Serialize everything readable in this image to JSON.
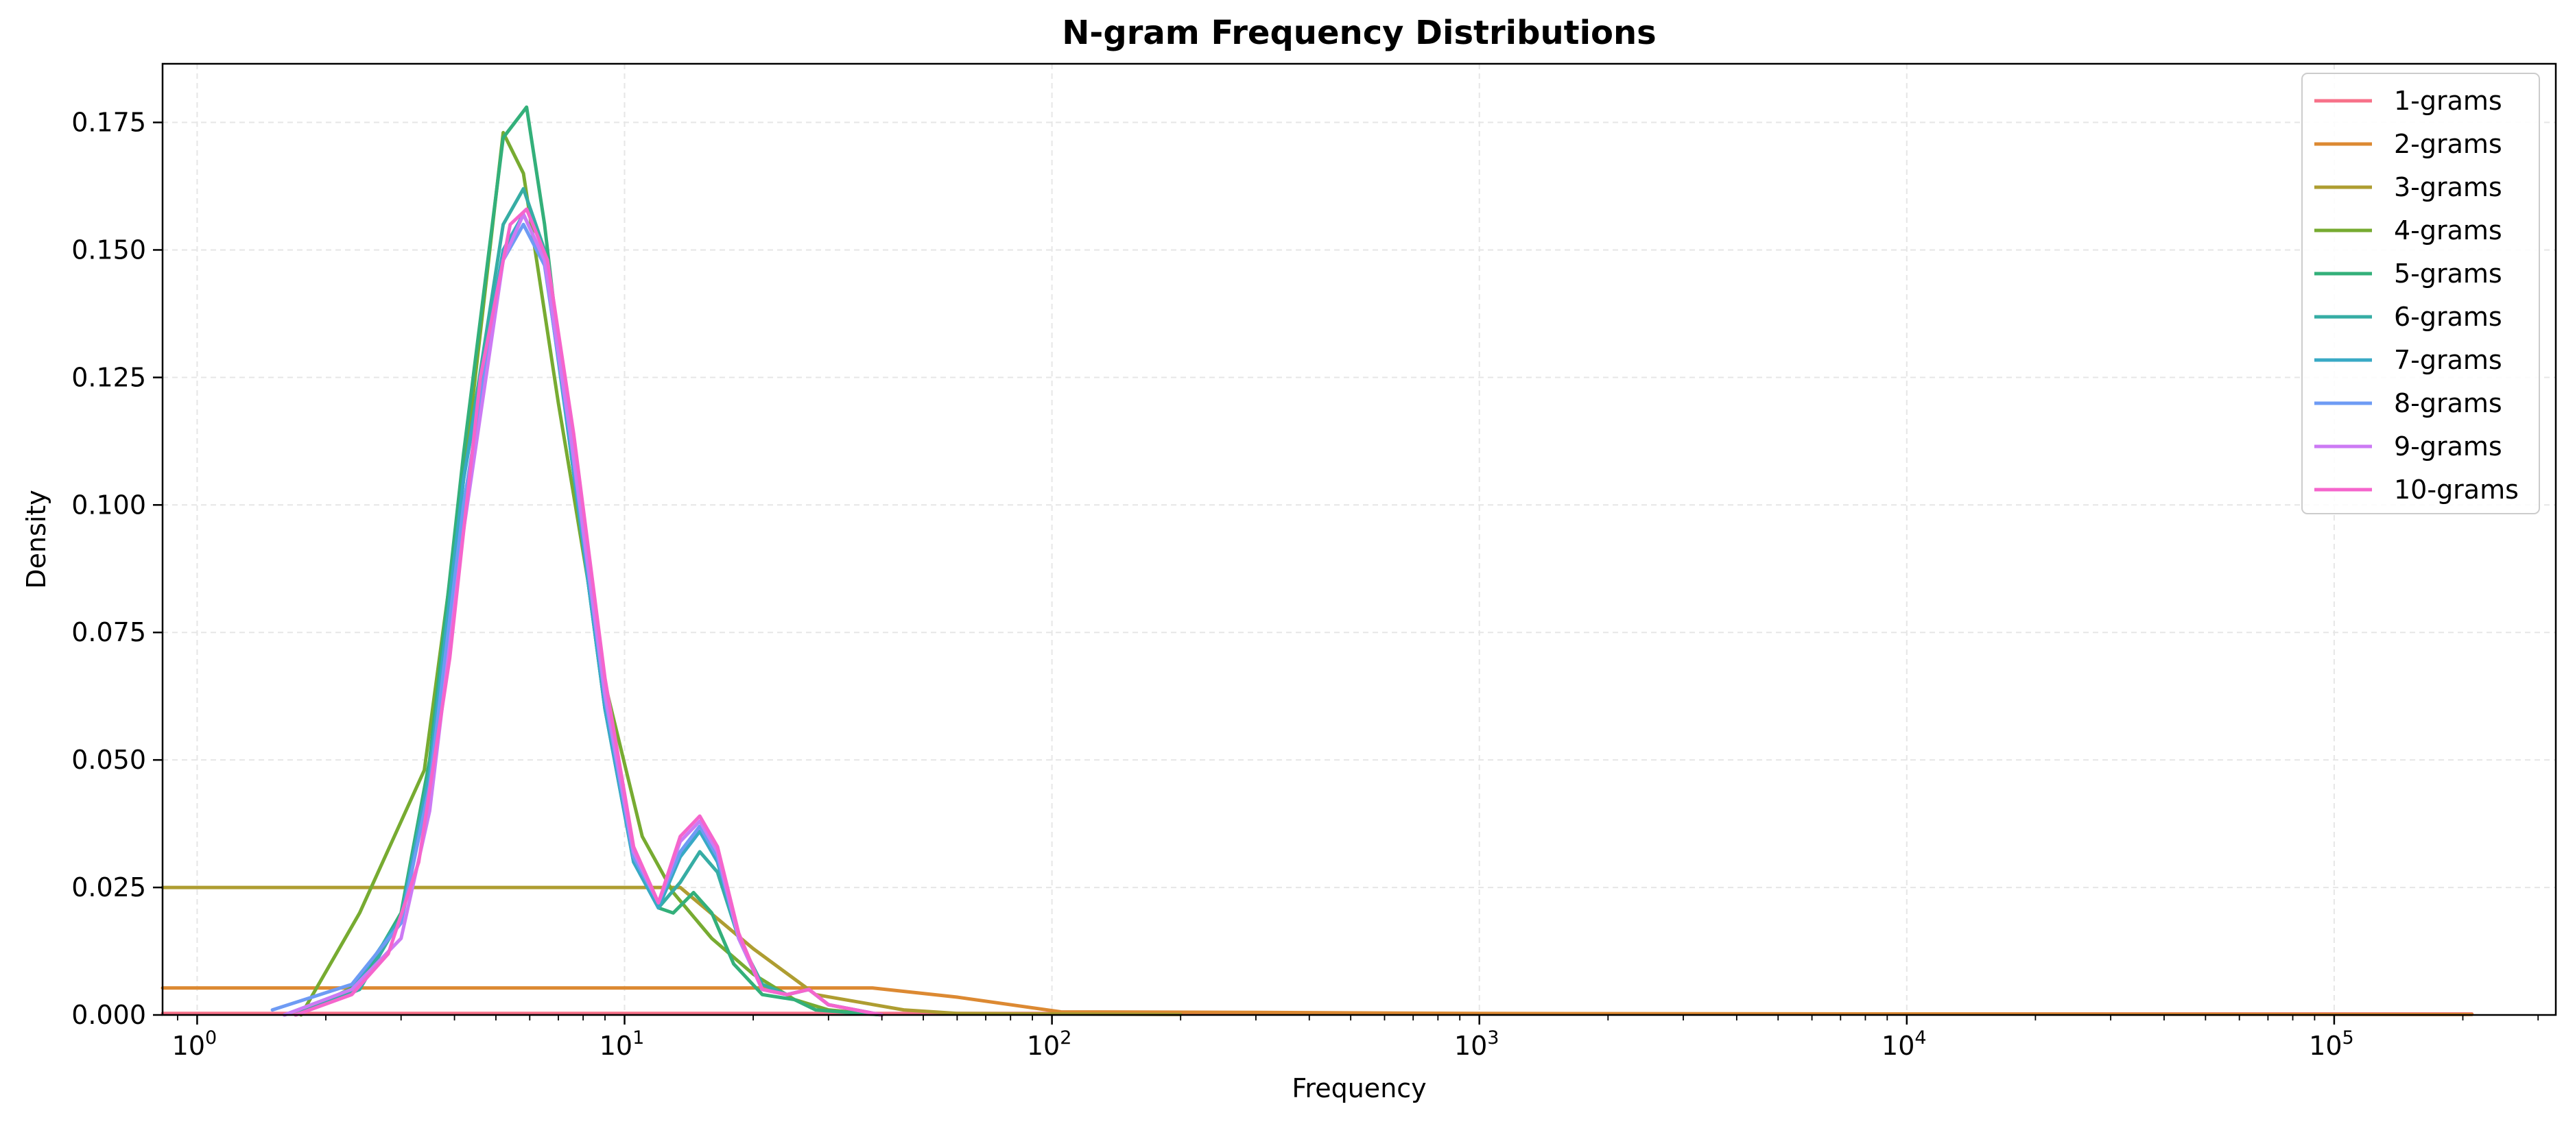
{
  "chart_data": {
    "type": "line",
    "title": "N-gram Frequency Distributions",
    "xlabel": "Frequency",
    "ylabel": "Density",
    "x_scale": "log",
    "xlim": [
      0.83,
      330000
    ],
    "ylim": [
      0,
      0.1865
    ],
    "x_ticks": [
      {
        "value": 1,
        "label_base": "10",
        "label_exp": "0"
      },
      {
        "value": 10,
        "label_base": "10",
        "label_exp": "1"
      },
      {
        "value": 100,
        "label_base": "10",
        "label_exp": "2"
      },
      {
        "value": 1000,
        "label_base": "10",
        "label_exp": "3"
      },
      {
        "value": 10000,
        "label_base": "10",
        "label_exp": "4"
      },
      {
        "value": 100000,
        "label_base": "10",
        "label_exp": "5"
      }
    ],
    "y_ticks": [
      {
        "value": 0.0,
        "label": "0.000"
      },
      {
        "value": 0.025,
        "label": "0.025"
      },
      {
        "value": 0.05,
        "label": "0.050"
      },
      {
        "value": 0.075,
        "label": "0.075"
      },
      {
        "value": 0.1,
        "label": "0.100"
      },
      {
        "value": 0.125,
        "label": "0.125"
      },
      {
        "value": 0.15,
        "label": "0.150"
      },
      {
        "value": 0.175,
        "label": "0.175"
      }
    ],
    "grid": true,
    "legend_position": "top-right",
    "series": [
      {
        "name": "1-grams",
        "color": "#f77189",
        "points": [
          [
            0.83,
            0.0003
          ],
          [
            10,
            0.0003
          ],
          [
            100,
            0.0003
          ],
          [
            1000,
            0.0002
          ],
          [
            10000,
            0.0002
          ],
          [
            100000,
            0.0002
          ],
          [
            210000,
            0.0002
          ]
        ]
      },
      {
        "name": "2-grams",
        "color": "#dc8932",
        "points": [
          [
            0.83,
            0.0053
          ],
          [
            10,
            0.0053
          ],
          [
            38,
            0.0053
          ],
          [
            60,
            0.0035
          ],
          [
            105,
            0.0006
          ],
          [
            300,
            0.0005
          ],
          [
            1000,
            0.0003
          ],
          [
            10000,
            0.0002
          ],
          [
            210000,
            0.0001
          ]
        ]
      },
      {
        "name": "3-grams",
        "color": "#ae9d31",
        "points": [
          [
            0.83,
            0.025
          ],
          [
            13.5,
            0.025
          ],
          [
            20,
            0.013
          ],
          [
            28,
            0.004
          ],
          [
            45,
            0.001
          ],
          [
            60,
            0.0003
          ],
          [
            200,
            0.0001
          ]
        ]
      },
      {
        "name": "4-grams",
        "color": "#77ab31",
        "points": [
          [
            1.75,
            0.0
          ],
          [
            2.4,
            0.02
          ],
          [
            3.4,
            0.048
          ],
          [
            4.2,
            0.105
          ],
          [
            5.2,
            0.173
          ],
          [
            5.8,
            0.165
          ],
          [
            7,
            0.12
          ],
          [
            9,
            0.065
          ],
          [
            11,
            0.035
          ],
          [
            13,
            0.024
          ],
          [
            16,
            0.015
          ],
          [
            20,
            0.008
          ],
          [
            25,
            0.003
          ],
          [
            30,
            0.001
          ],
          [
            40,
            0.0
          ]
        ]
      },
      {
        "name": "5-grams",
        "color": "#33b07a",
        "points": [
          [
            1.7,
            0.0
          ],
          [
            2.4,
            0.006
          ],
          [
            3.0,
            0.02
          ],
          [
            3.5,
            0.05
          ],
          [
            4.2,
            0.11
          ],
          [
            5.2,
            0.172
          ],
          [
            5.9,
            0.178
          ],
          [
            6.5,
            0.155
          ],
          [
            7.5,
            0.11
          ],
          [
            9,
            0.06
          ],
          [
            10.5,
            0.032
          ],
          [
            12,
            0.021
          ],
          [
            13,
            0.02
          ],
          [
            14.5,
            0.024
          ],
          [
            16,
            0.02
          ],
          [
            18,
            0.01
          ],
          [
            21,
            0.004
          ],
          [
            25,
            0.003
          ],
          [
            28,
            0.001
          ],
          [
            40,
            0.0
          ]
        ]
      },
      {
        "name": "6-grams",
        "color": "#36ada4",
        "points": [
          [
            1.7,
            0.0
          ],
          [
            2.4,
            0.005
          ],
          [
            3.0,
            0.019
          ],
          [
            3.5,
            0.048
          ],
          [
            4.2,
            0.105
          ],
          [
            5.2,
            0.155
          ],
          [
            5.8,
            0.162
          ],
          [
            6.5,
            0.15
          ],
          [
            7.5,
            0.11
          ],
          [
            9,
            0.06
          ],
          [
            10.5,
            0.03
          ],
          [
            12,
            0.021
          ],
          [
            13.5,
            0.026
          ],
          [
            15,
            0.032
          ],
          [
            16.5,
            0.028
          ],
          [
            18.5,
            0.015
          ],
          [
            21,
            0.006
          ],
          [
            24,
            0.004
          ],
          [
            27,
            0.005
          ],
          [
            30,
            0.002
          ],
          [
            40,
            0.0
          ]
        ]
      },
      {
        "name": "7-grams",
        "color": "#38a9c5",
        "points": [
          [
            1.6,
            0.0
          ],
          [
            2.3,
            0.005
          ],
          [
            3.0,
            0.019
          ],
          [
            3.5,
            0.047
          ],
          [
            4.2,
            0.105
          ],
          [
            5.2,
            0.15
          ],
          [
            5.8,
            0.157
          ],
          [
            6.5,
            0.148
          ],
          [
            7.5,
            0.11
          ],
          [
            9,
            0.06
          ],
          [
            10.5,
            0.03
          ],
          [
            12,
            0.021
          ],
          [
            13.5,
            0.031
          ],
          [
            15,
            0.036
          ],
          [
            16.5,
            0.03
          ],
          [
            18.5,
            0.015
          ],
          [
            21,
            0.005
          ],
          [
            24,
            0.004
          ],
          [
            27,
            0.005
          ],
          [
            30,
            0.002
          ],
          [
            40,
            0.0
          ]
        ]
      },
      {
        "name": "8-grams",
        "color": "#6e9bf4",
        "points": [
          [
            1.5,
            0.001
          ],
          [
            2.3,
            0.006
          ],
          [
            3.0,
            0.018
          ],
          [
            3.5,
            0.045
          ],
          [
            4.2,
            0.1
          ],
          [
            5.2,
            0.148
          ],
          [
            5.8,
            0.155
          ],
          [
            6.5,
            0.147
          ],
          [
            7.5,
            0.112
          ],
          [
            9,
            0.062
          ],
          [
            10.5,
            0.031
          ],
          [
            12,
            0.022
          ],
          [
            13.5,
            0.032
          ],
          [
            15,
            0.037
          ],
          [
            16.5,
            0.031
          ],
          [
            18.5,
            0.015
          ],
          [
            21,
            0.005
          ],
          [
            24,
            0.004
          ],
          [
            27,
            0.005
          ],
          [
            30,
            0.002
          ],
          [
            40,
            0.0
          ]
        ]
      },
      {
        "name": "9-grams",
        "color": "#cc7af4",
        "points": [
          [
            1.6,
            0.0
          ],
          [
            2.3,
            0.005
          ],
          [
            3.0,
            0.015
          ],
          [
            3.5,
            0.04
          ],
          [
            4.2,
            0.095
          ],
          [
            5.2,
            0.148
          ],
          [
            5.8,
            0.157
          ],
          [
            6.5,
            0.148
          ],
          [
            7.5,
            0.113
          ],
          [
            9,
            0.063
          ],
          [
            10.5,
            0.032
          ],
          [
            12,
            0.022
          ],
          [
            13.5,
            0.034
          ],
          [
            15,
            0.038
          ],
          [
            16.5,
            0.032
          ],
          [
            18.5,
            0.015
          ],
          [
            21,
            0.005
          ],
          [
            24,
            0.004
          ],
          [
            27,
            0.005
          ],
          [
            30,
            0.002
          ],
          [
            40,
            0.0
          ]
        ]
      },
      {
        "name": "10-grams",
        "color": "#f565cc",
        "points": [
          [
            1.7,
            0.0
          ],
          [
            2.3,
            0.004
          ],
          [
            2.8,
            0.012
          ],
          [
            3.3,
            0.03
          ],
          [
            3.9,
            0.07
          ],
          [
            4.6,
            0.125
          ],
          [
            5.4,
            0.155
          ],
          [
            5.9,
            0.158
          ],
          [
            6.6,
            0.148
          ],
          [
            7.6,
            0.114
          ],
          [
            9,
            0.066
          ],
          [
            10.5,
            0.033
          ],
          [
            12,
            0.022
          ],
          [
            13.5,
            0.035
          ],
          [
            15,
            0.039
          ],
          [
            16.5,
            0.033
          ],
          [
            18.5,
            0.016
          ],
          [
            21,
            0.005
          ],
          [
            24,
            0.004
          ],
          [
            27,
            0.005
          ],
          [
            30,
            0.002
          ],
          [
            40,
            0.0
          ]
        ]
      }
    ]
  }
}
